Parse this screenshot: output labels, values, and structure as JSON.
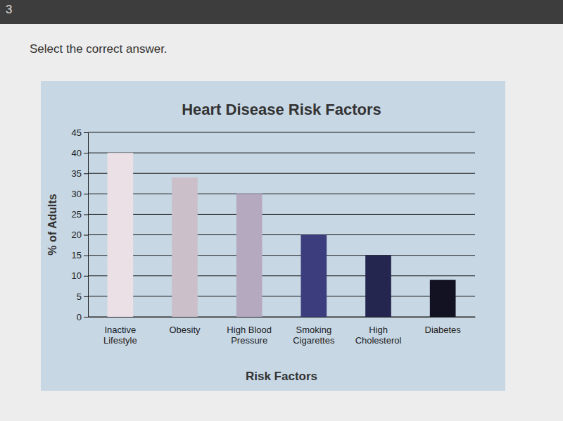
{
  "page": {
    "question_number": "3",
    "instruction": "Select the correct answer."
  },
  "chart_data": {
    "type": "bar",
    "title": "Heart Disease Risk Factors",
    "x_label": "Risk Factors",
    "y_label": "% of Adults",
    "categories": [
      "Inactive Lifestyle",
      "Obesity",
      "High Blood Pressure",
      "Smoking Cigarettes",
      "High Cholesterol",
      "Diabetes"
    ],
    "values": [
      40,
      34,
      30,
      20,
      15,
      9
    ],
    "colors": [
      "#ebe0e6",
      "#cbbfc9",
      "#b5a9c0",
      "#3b3d7c",
      "#25264f",
      "#121222"
    ],
    "ylim": [
      0,
      45
    ],
    "yticks": [
      0,
      5,
      10,
      15,
      20,
      25,
      30,
      35,
      40,
      45
    ],
    "grid": true
  }
}
